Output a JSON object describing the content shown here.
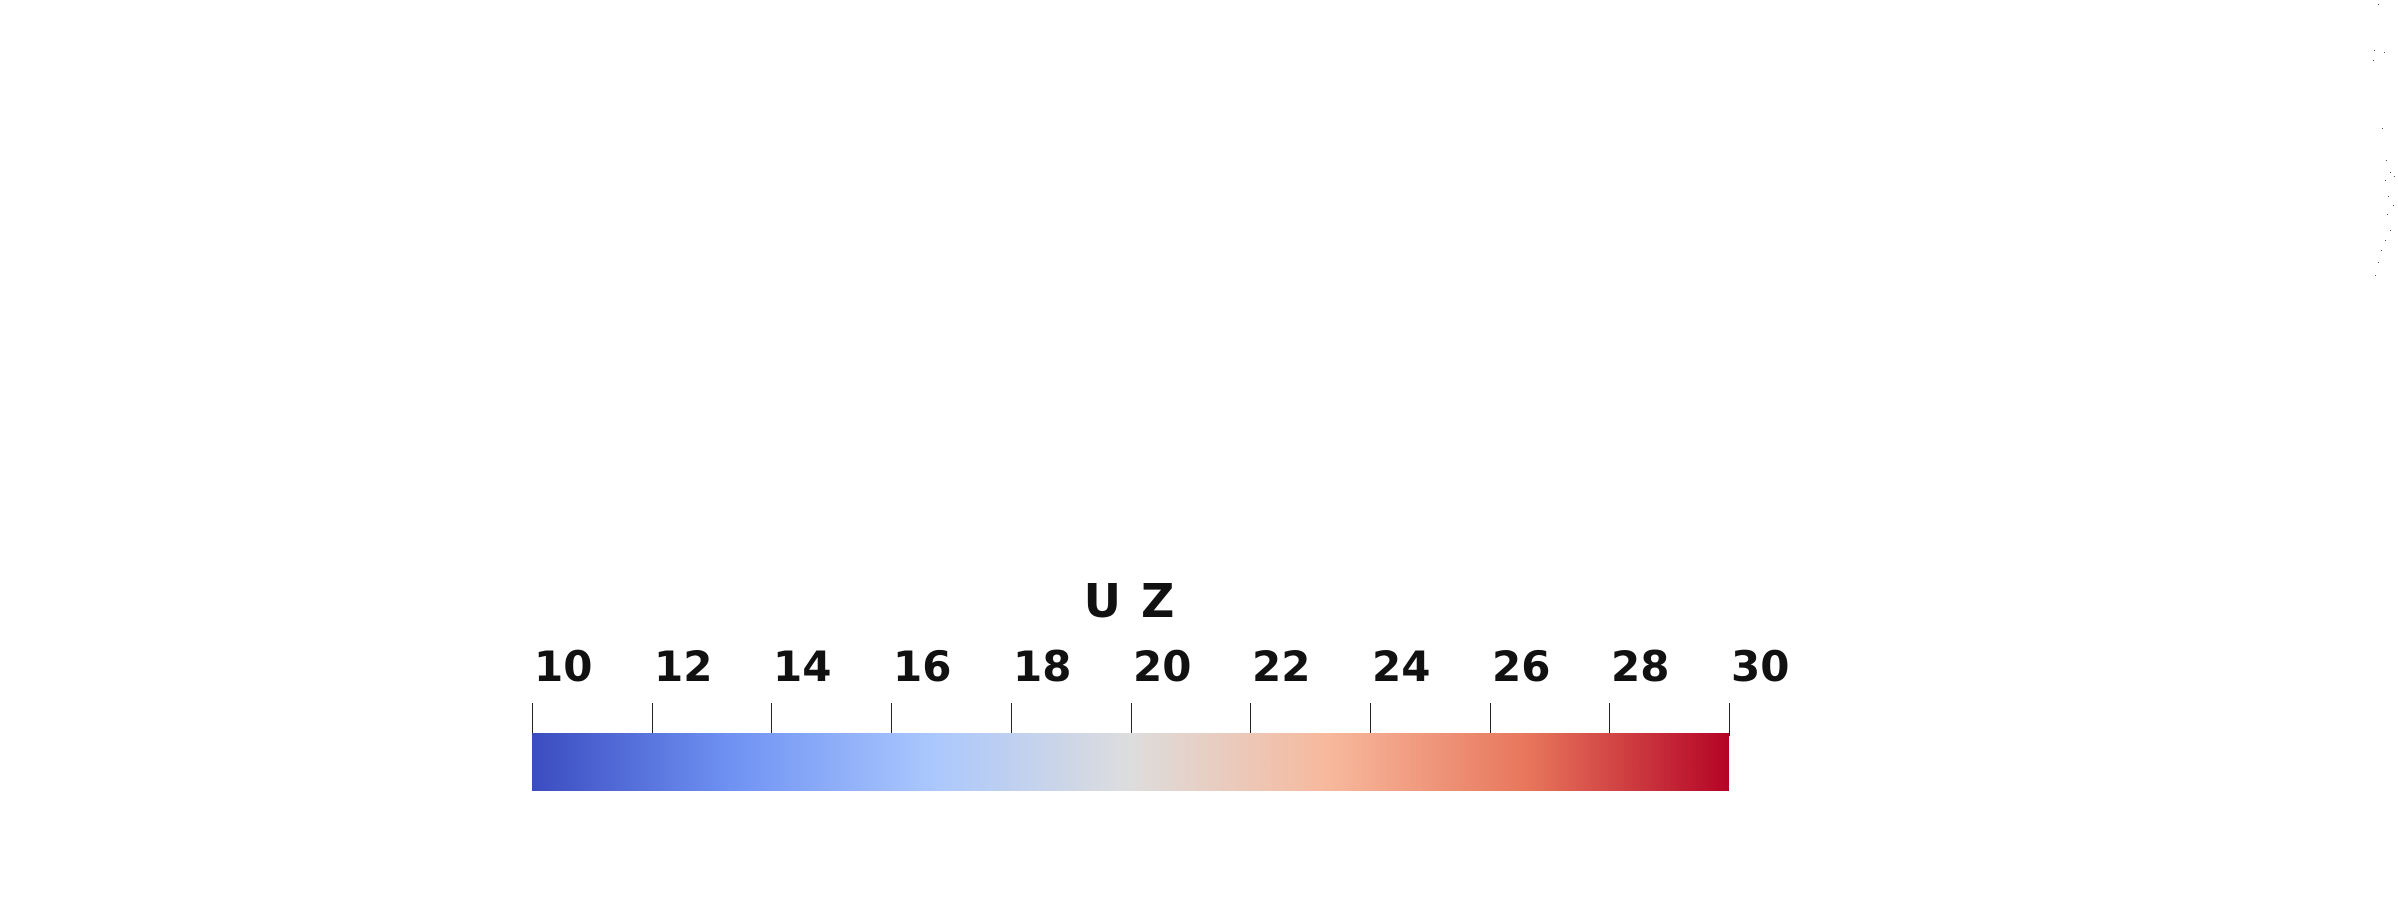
{
  "legend": {
    "title": "U Z",
    "range": [
      10,
      30
    ],
    "ticks": [
      {
        "value": 10,
        "label": "10"
      },
      {
        "value": 12,
        "label": "12"
      },
      {
        "value": 14,
        "label": "14"
      },
      {
        "value": 16,
        "label": "16"
      },
      {
        "value": 18,
        "label": "18"
      },
      {
        "value": 20,
        "label": "20"
      },
      {
        "value": 22,
        "label": "22"
      },
      {
        "value": 24,
        "label": "24"
      },
      {
        "value": 26,
        "label": "26"
      },
      {
        "value": 28,
        "label": "28"
      },
      {
        "value": 30,
        "label": "30"
      }
    ],
    "colormap": [
      "#3b4cc0",
      "#6f92f3",
      "#aac7fd",
      "#dddddd",
      "#f7b89c",
      "#e7755b",
      "#b40426"
    ]
  }
}
